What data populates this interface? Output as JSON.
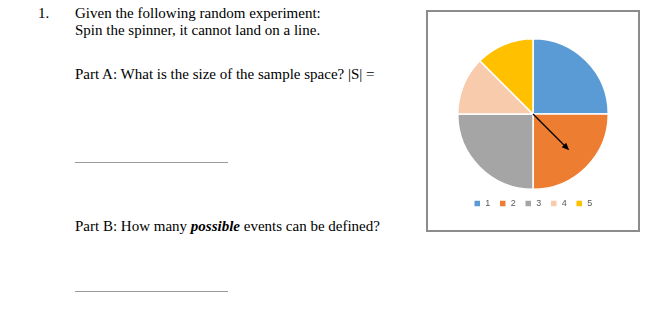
{
  "question": {
    "number": "1.",
    "lines": [
      "Given the following random experiment:",
      "Spin the spinner, it cannot land on a line."
    ],
    "parts": [
      {
        "segments": [
          {
            "text": "Part A: What is the size of the sample space? |S| =",
            "style": "plain"
          }
        ]
      },
      {
        "segments": [
          {
            "text": "Part B: How many ",
            "style": "plain"
          },
          {
            "text": "possible",
            "style": "bold-italic"
          },
          {
            "text": " events can be defined?",
            "style": "plain"
          }
        ]
      }
    ]
  },
  "chart_data": {
    "type": "pie",
    "categories": [
      "1",
      "2",
      "3",
      "4",
      "5"
    ],
    "values": [
      25,
      25,
      25,
      12.5,
      12.5
    ],
    "colors": [
      "#5b9bd5",
      "#ed7d31",
      "#a5a5a5",
      "#f8cbad",
      "#ffc000"
    ],
    "legend": "bottom"
  }
}
